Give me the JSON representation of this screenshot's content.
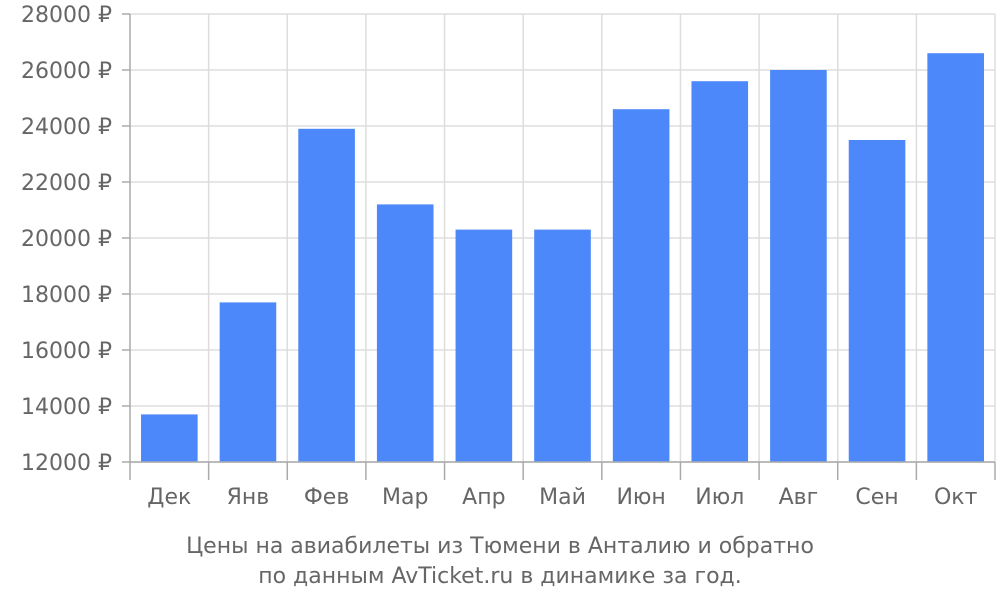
{
  "chart_data": {
    "type": "bar",
    "categories": [
      "Дек",
      "Янв",
      "Фев",
      "Мар",
      "Апр",
      "Май",
      "Июн",
      "Июл",
      "Авг",
      "Сен",
      "Окт"
    ],
    "values": [
      13700,
      17700,
      23900,
      21200,
      20300,
      20300,
      24600,
      25600,
      26000,
      23500,
      26600
    ],
    "ylim": [
      12000,
      28000
    ],
    "yticks": [
      12000,
      14000,
      16000,
      18000,
      20000,
      22000,
      24000,
      26000,
      28000
    ],
    "ytick_suffix": " ₽",
    "grid": true,
    "colors": {
      "bar": "#4d88fb",
      "grid": "#dddddd",
      "axis": "#aaaaaa",
      "text": "#666666"
    }
  },
  "caption": {
    "line1": "Цены на авиабилеты из Тюмени в Анталию и обратно",
    "line2": "по данным AvTicket.ru в динамике за год."
  }
}
